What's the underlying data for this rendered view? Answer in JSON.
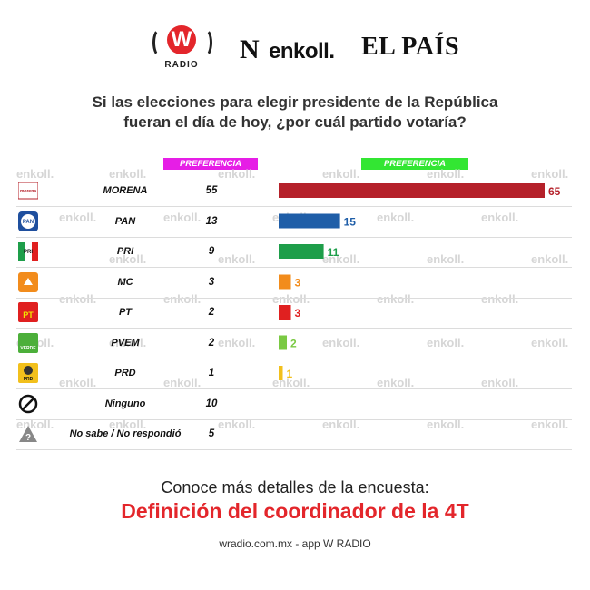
{
  "logos": {
    "w_letter": "W",
    "w_radio": "RADIO",
    "enkoll": "enkoll.",
    "elpais": "EL PAÍS"
  },
  "question": {
    "line1": "Si las elecciones para elegir presidente de la República",
    "line2": "fueran el día de hoy, ¿por cuál partido votaría?"
  },
  "headers": {
    "bruta": "PREFERENCIA BRUTA",
    "efectiva": "PREFERENCIA EFECTIVA"
  },
  "watermark": "enkoll.",
  "chart_data": {
    "type": "bar",
    "categories": [
      "MORENA",
      "PAN",
      "PRI",
      "MC",
      "PT",
      "PVEM",
      "PRD",
      "Ninguno",
      "No sabe / No respondió"
    ],
    "series": [
      {
        "name": "PREFERENCIA BRUTA",
        "values": [
          55,
          13,
          9,
          3,
          2,
          2,
          1,
          10,
          5
        ]
      },
      {
        "name": "PREFERENCIA EFECTIVA",
        "values": [
          65,
          15,
          11,
          3,
          3,
          2,
          1,
          null,
          null
        ]
      }
    ],
    "bar_colors": [
      "#b5212a",
      "#1f5ea8",
      "#1e9e4a",
      "#f28c1c",
      "#e02020",
      "#7ac943",
      "#f2c01c",
      null,
      null
    ],
    "xlim": [
      0,
      65
    ],
    "grid": false
  },
  "icons": [
    "morena-logo",
    "pan-logo",
    "pri-logo",
    "mc-logo",
    "pt-logo",
    "pvem-logo",
    "prd-logo",
    "ninguno-icon",
    "no-sabe-icon"
  ],
  "icon_text": [
    "morena",
    "PAN",
    "PRI",
    "",
    "PT",
    "VERDE",
    "PRD",
    "",
    "?"
  ],
  "footer": {
    "line1": "Conoce más detalles de la encuesta:",
    "line2": "Definición del coordinador de la 4T",
    "line3": "wradio.com.mx - app W RADIO"
  }
}
